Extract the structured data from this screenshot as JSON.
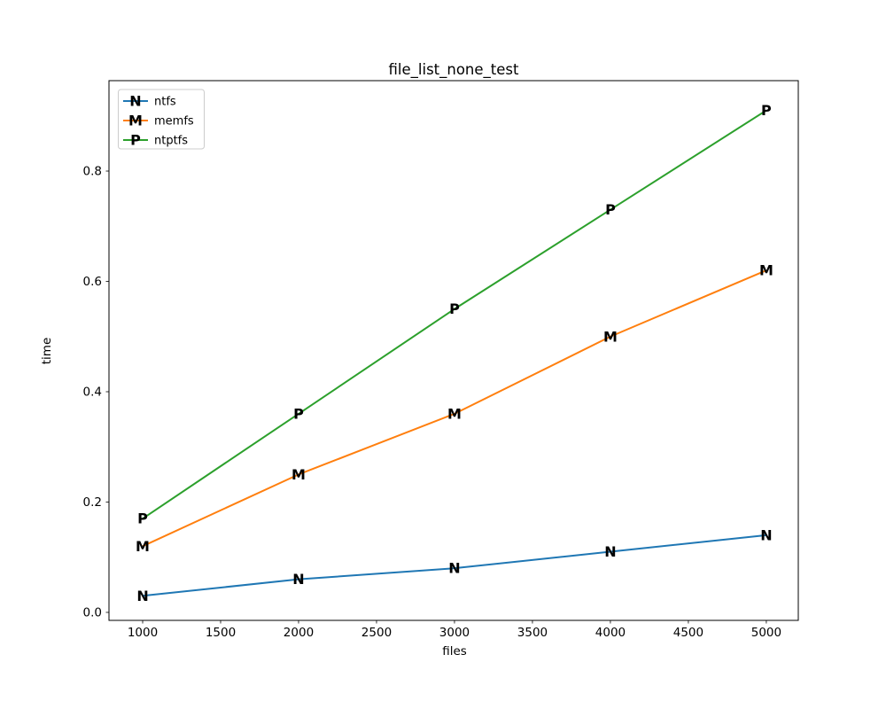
{
  "figure": {
    "background": "#ffffff"
  },
  "chart_data": {
    "type": "line",
    "title": "file_list_none_test",
    "xlabel": "files",
    "ylabel": "time",
    "x": [
      1000,
      2000,
      3000,
      4000,
      5000
    ],
    "series": [
      {
        "name": "ntfs",
        "color": "#1f77b4",
        "marker": "N",
        "values": [
          0.03,
          0.06,
          0.08,
          0.11,
          0.14
        ]
      },
      {
        "name": "memfs",
        "color": "#ff7f0e",
        "marker": "M",
        "values": [
          0.12,
          0.25,
          0.36,
          0.5,
          0.62
        ]
      },
      {
        "name": "ntptfs",
        "color": "#2ca02c",
        "marker": "P",
        "values": [
          0.17,
          0.36,
          0.55,
          0.73,
          0.91
        ]
      }
    ],
    "xticks": [
      1000,
      1500,
      2000,
      2500,
      3000,
      3500,
      4000,
      4500,
      5000
    ],
    "yticks": [
      0.0,
      0.2,
      0.4,
      0.6,
      0.8
    ],
    "xlim": [
      784,
      5205
    ],
    "ylim": [
      -0.0145,
      0.9639
    ],
    "grid": false,
    "legend_position": "upper left",
    "spine_color": "#000000",
    "legend_border_color": "#cccccc"
  }
}
